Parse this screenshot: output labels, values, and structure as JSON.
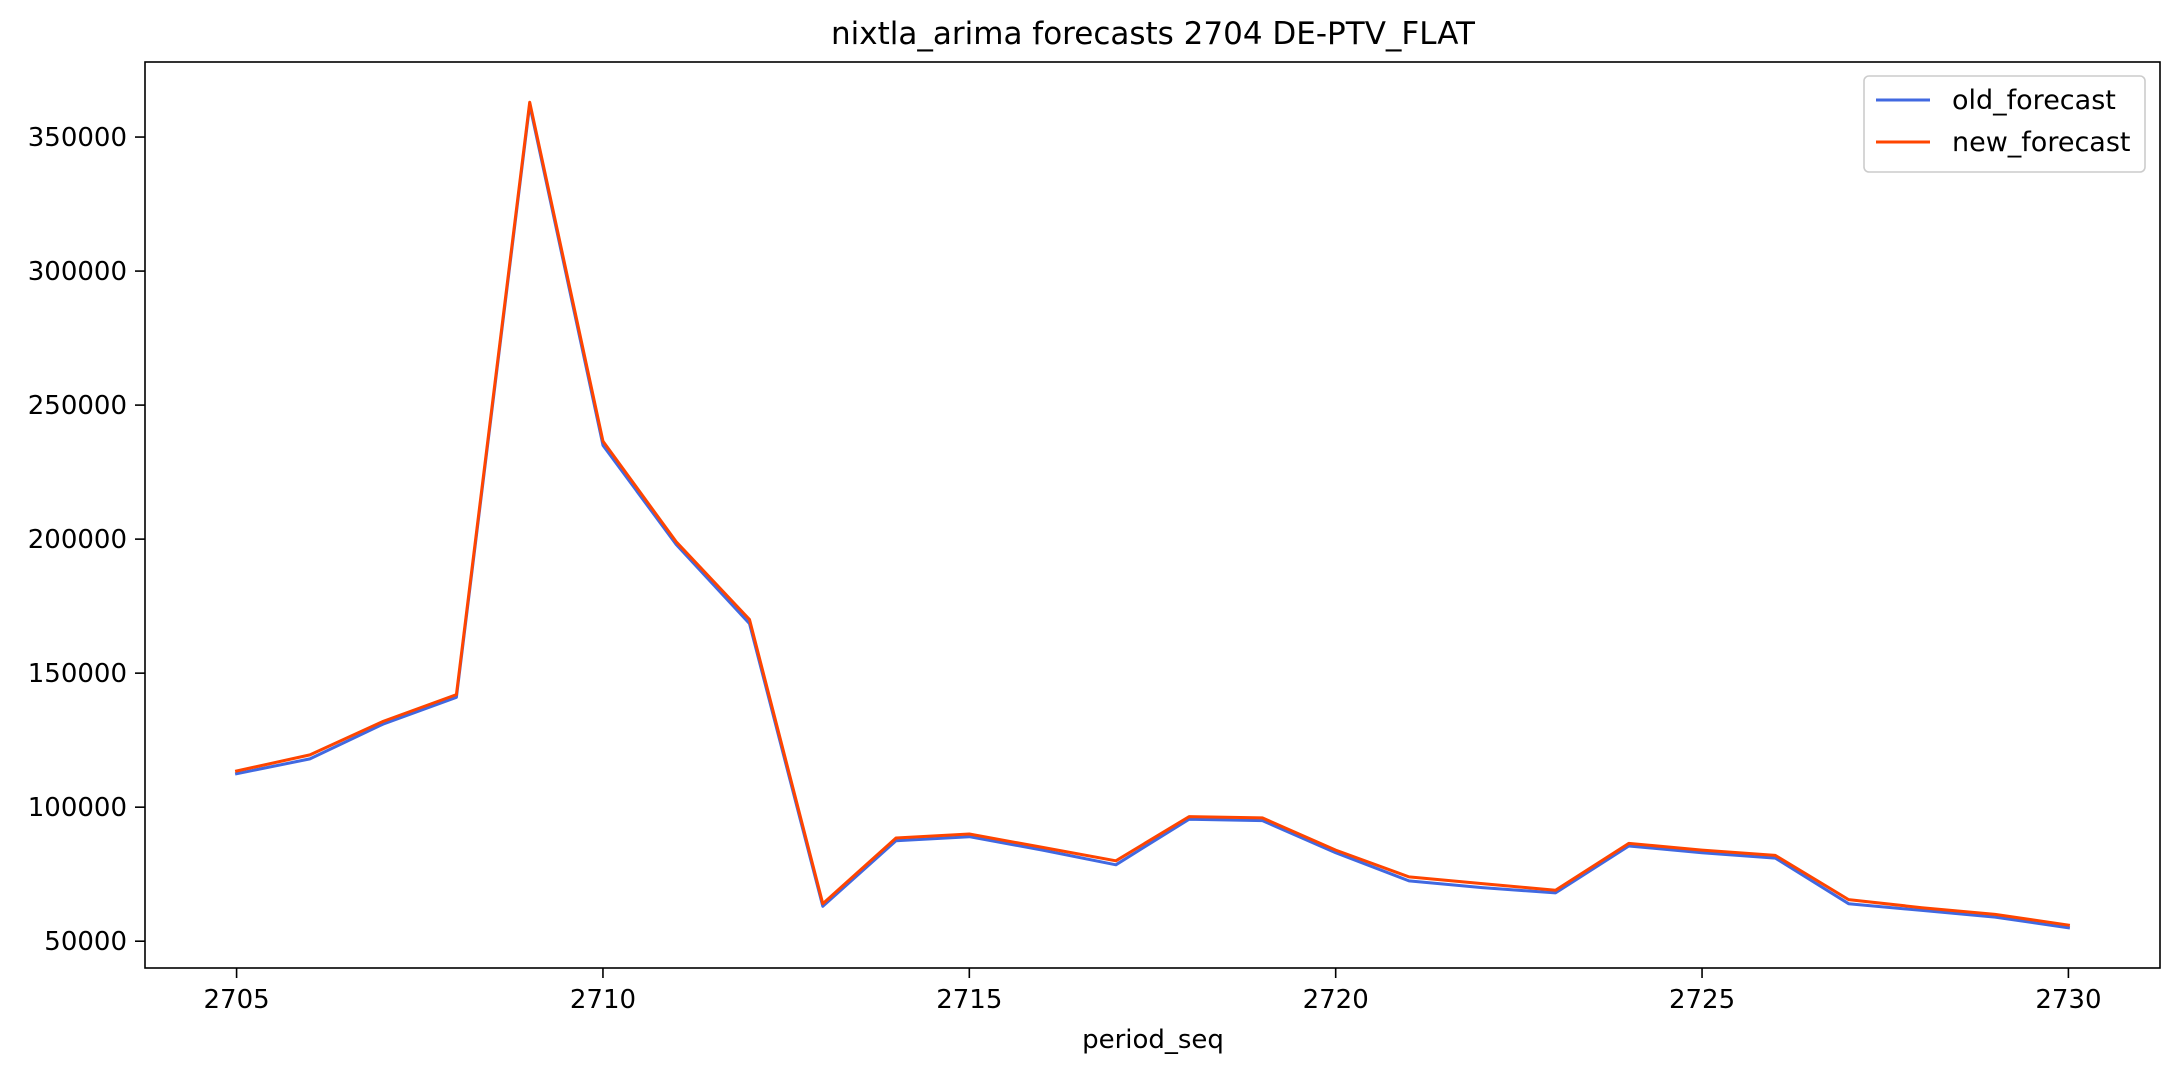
{
  "chart_data": {
    "type": "line",
    "title": "nixtla_arima forecasts 2704 DE-PTV_FLAT",
    "xlabel": "period_seq",
    "ylabel": "",
    "x": [
      2705,
      2706,
      2707,
      2708,
      2709,
      2710,
      2711,
      2712,
      2713,
      2714,
      2715,
      2716,
      2717,
      2718,
      2719,
      2720,
      2721,
      2722,
      2723,
      2724,
      2725,
      2726,
      2727,
      2728,
      2729,
      2730
    ],
    "xlim": [
      2703.75,
      2731.25
    ],
    "ylim": [
      40000,
      378000
    ],
    "xticks": [
      2705,
      2710,
      2715,
      2720,
      2725,
      2730
    ],
    "yticks": [
      50000,
      100000,
      150000,
      200000,
      250000,
      300000,
      350000
    ],
    "grid": false,
    "legend_position": "top-right",
    "series": [
      {
        "name": "old_forecast",
        "color": "#4169e1",
        "values": [
          112500,
          118000,
          131000,
          141000,
          362000,
          235000,
          198000,
          168500,
          63000,
          87500,
          89000,
          84000,
          78500,
          95500,
          95000,
          83000,
          72500,
          70000,
          68000,
          85500,
          83000,
          81000,
          64000,
          61500,
          59000,
          55000
        ]
      },
      {
        "name": "new_forecast",
        "color": "#ff4500",
        "values": [
          113500,
          119500,
          132000,
          142000,
          363000,
          236500,
          199000,
          170000,
          64000,
          88500,
          90000,
          85000,
          80000,
          96500,
          96000,
          84000,
          74000,
          71500,
          69000,
          86500,
          84000,
          82000,
          65500,
          62500,
          60000,
          56000
        ]
      }
    ]
  }
}
